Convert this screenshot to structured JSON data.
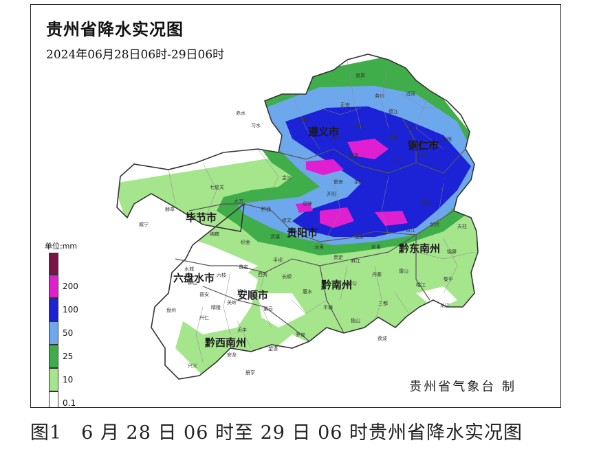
{
  "map": {
    "title": "贵州省降水实况图",
    "period": "2024年06月28日06时-29日06时",
    "credit": "贵州省气象台 制"
  },
  "legend": {
    "unit_label": "单位:mm",
    "levels": [
      {
        "label": "",
        "color": "#7a1446"
      },
      {
        "label": "200",
        "color": "#e020d0"
      },
      {
        "label": "100",
        "color": "#1c22d6"
      },
      {
        "label": "50",
        "color": "#6ea8ec"
      },
      {
        "label": "25",
        "color": "#3fae4a"
      },
      {
        "label": "10",
        "color": "#a5e58c"
      },
      {
        "label": "0.1",
        "color": "#ffffff"
      }
    ]
  },
  "prefectures": [
    {
      "name": "遵义市"
    },
    {
      "name": "铜仁市"
    },
    {
      "name": "毕节市"
    },
    {
      "name": "贵阳市"
    },
    {
      "name": "黔东南州"
    },
    {
      "name": "六盘水市"
    },
    {
      "name": "安顺市"
    },
    {
      "name": "黔南州"
    },
    {
      "name": "黔西南州"
    }
  ],
  "counties": [
    "道真",
    "务川",
    "赤水",
    "习水",
    "正安",
    "桐梓",
    "绥阳",
    "凤冈",
    "湄潭",
    "余庆",
    "德江",
    "沿河",
    "思南",
    "印江",
    "江口",
    "松桃",
    "石阡",
    "七星关",
    "赫章",
    "威宁",
    "大方",
    "金沙",
    "黔西",
    "织金",
    "纳雍",
    "修文",
    "息烽",
    "开阳",
    "清镇",
    "镇远",
    "天柱",
    "剑河",
    "锦屏",
    "黎平",
    "从江",
    "榕江",
    "雷山",
    "台江",
    "凯里",
    "麻江",
    "丹寨",
    "水城",
    "盘州",
    "六枝",
    "普定",
    "镇宁",
    "关岭",
    "紫云",
    "西秀",
    "平坝",
    "长顺",
    "惠水",
    "平塘",
    "独山",
    "荔波",
    "三都",
    "都匀",
    "贵定",
    "龙里",
    "福泉",
    "瓮安",
    "罗甸",
    "兴仁",
    "兴义",
    "安龙",
    "册亨",
    "望谟",
    "贞丰",
    "普安",
    "晴隆",
    "钟山"
  ],
  "caption": "图1　6 月 28 日 06 时至 29 日 06 时贵州省降水实况图"
}
